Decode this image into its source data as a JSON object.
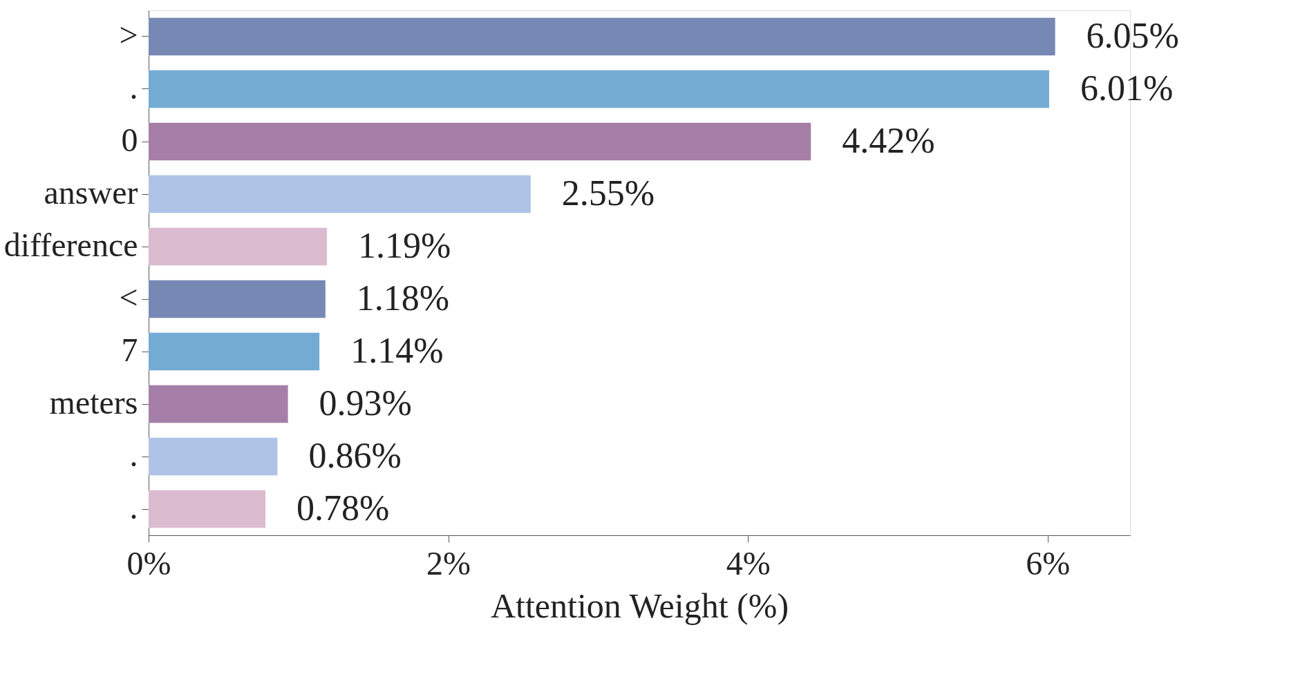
{
  "chart_data": {
    "type": "bar",
    "orientation": "horizontal",
    "xlabel": "Attention Weight (%)",
    "categories": [
      ">",
      ".",
      "0",
      "answer",
      "difference",
      "<",
      "7",
      "meters",
      ".",
      "."
    ],
    "values": [
      6.05,
      6.01,
      4.42,
      2.55,
      1.19,
      1.18,
      1.14,
      0.93,
      0.86,
      0.78
    ],
    "value_labels": [
      "6.05%",
      "6.01%",
      "4.42%",
      "2.55%",
      "1.19%",
      "1.18%",
      "1.14%",
      "0.93%",
      "0.86%",
      "0.78%"
    ],
    "colors": [
      "#7788b5",
      "#74abd3",
      "#a67fa8",
      "#aec3e5",
      "#dbbbcf",
      "#7788b5",
      "#74abd3",
      "#a67fa8",
      "#aec3e5",
      "#dbbbcf"
    ],
    "xlim": [
      0,
      6.55
    ],
    "xticks": [
      {
        "value": 0,
        "label": "0%"
      },
      {
        "value": 2,
        "label": "2%"
      },
      {
        "value": 4,
        "label": "4%"
      },
      {
        "value": 6,
        "label": "6%"
      }
    ],
    "grid": false,
    "legend": false
  }
}
